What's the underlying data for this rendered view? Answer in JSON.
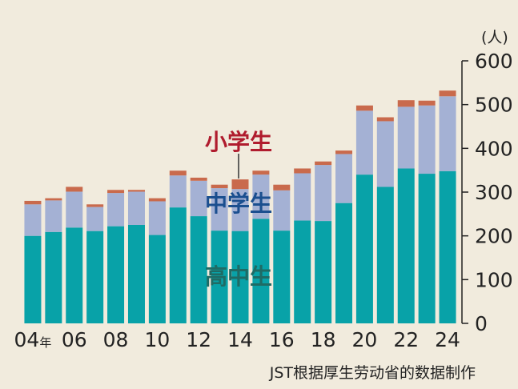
{
  "chart_data": {
    "type": "bar",
    "stacked": true,
    "unit": "(人)",
    "ylim": [
      0,
      600
    ],
    "yticks": [
      "0",
      "100",
      "200",
      "300",
      "400",
      "500",
      "600"
    ],
    "years": [
      2004,
      2005,
      2006,
      2007,
      2008,
      2009,
      2010,
      2011,
      2012,
      2013,
      2014,
      2015,
      2016,
      2017,
      2018,
      2019,
      2020,
      2021,
      2022,
      2023,
      2024
    ],
    "xtick_labels": [
      {
        "year": 2004,
        "text": "04",
        "suffix": "年"
      },
      {
        "year": 2006,
        "text": "06",
        "suffix": ""
      },
      {
        "year": 2008,
        "text": "08",
        "suffix": ""
      },
      {
        "year": 2010,
        "text": "10",
        "suffix": ""
      },
      {
        "year": 2012,
        "text": "12",
        "suffix": ""
      },
      {
        "year": 2014,
        "text": "14",
        "suffix": ""
      },
      {
        "year": 2016,
        "text": "16",
        "suffix": ""
      },
      {
        "year": 2018,
        "text": "18",
        "suffix": ""
      },
      {
        "year": 2020,
        "text": "20",
        "suffix": ""
      },
      {
        "year": 2022,
        "text": "22",
        "suffix": ""
      },
      {
        "year": 2024,
        "text": "24",
        "suffix": ""
      }
    ],
    "series": [
      {
        "name": "高中生",
        "color": "#08a2a8",
        "label_color": "#1f6b65",
        "values": [
          200,
          209,
          219,
          211,
          222,
          225,
          202,
          265,
          245,
          212,
          211,
          239,
          212,
          235,
          234,
          275,
          340,
          312,
          354,
          342,
          348
        ]
      },
      {
        "name": "中学生",
        "color": "#a4b1d4",
        "label_color": "#1b4f8f",
        "values": [
          72,
          72,
          82,
          55,
          76,
          76,
          77,
          73,
          81,
          97,
          96,
          101,
          92,
          108,
          128,
          112,
          146,
          150,
          141,
          156,
          171
        ]
      },
      {
        "name": "小学生",
        "color": "#c96a4c",
        "label_color": "#b01c2e",
        "values": [
          8,
          5,
          11,
          6,
          7,
          4,
          7,
          11,
          7,
          8,
          22,
          9,
          13,
          11,
          8,
          8,
          12,
          9,
          15,
          11,
          13
        ]
      }
    ],
    "source": "JST根据厚生劳动省的数据制作"
  }
}
